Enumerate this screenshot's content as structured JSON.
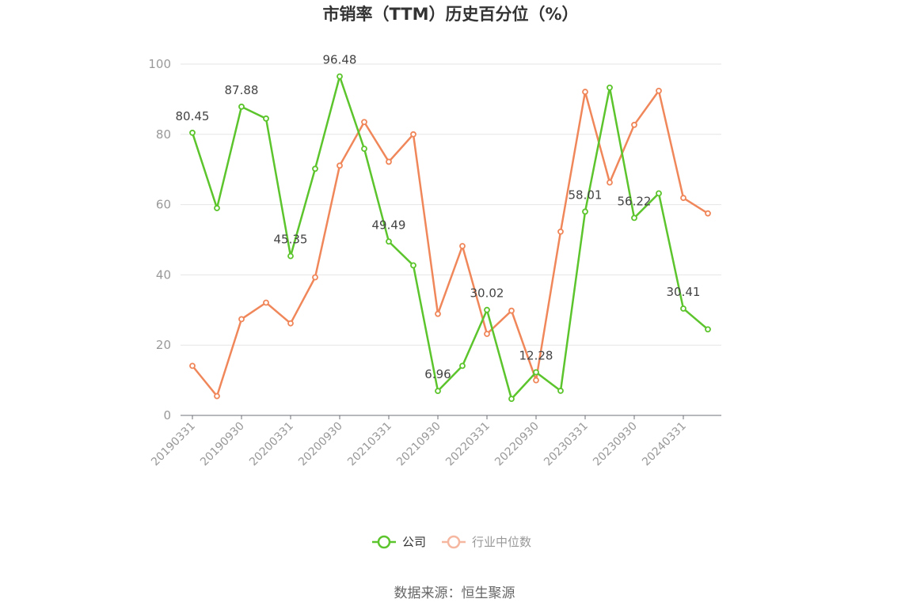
{
  "chart_data": {
    "type": "line",
    "title": "市销率（TTM）历史百分位（%）",
    "source": "数据来源：恒生聚源",
    "ylim": [
      0,
      100
    ],
    "yticks": [
      0,
      20,
      40,
      60,
      80,
      100
    ],
    "grid": true,
    "legend_position": "bottom",
    "x": [
      "20190331",
      "20190630",
      "20190930",
      "20191231",
      "20200331",
      "20200630",
      "20200930",
      "20201231",
      "20210331",
      "20210630",
      "20210930",
      "20211231",
      "20220331",
      "20220630",
      "20220930",
      "20221231",
      "20230331",
      "20230630",
      "20230930",
      "20231231",
      "20240331",
      "20240630"
    ],
    "xtick_labels": [
      "20190331",
      "20190930",
      "20200331",
      "20200930",
      "20210331",
      "20210930",
      "20220331",
      "20220930",
      "20230331",
      "20230930",
      "20240331"
    ],
    "series": [
      {
        "name": "公司",
        "color": "#5cc42c",
        "values": [
          80.45,
          59.0,
          87.88,
          84.5,
          45.35,
          70.2,
          96.48,
          75.9,
          49.49,
          42.7,
          6.96,
          14.1,
          30.02,
          4.7,
          12.28,
          7.0,
          58.01,
          93.3,
          56.22,
          63.2,
          30.41,
          24.5
        ],
        "labels": {
          "0": "80.45",
          "2": "87.88",
          "4": "45.35",
          "6": "96.48",
          "8": "49.49",
          "10": "6.96",
          "12": "30.02",
          "14": "12.28",
          "16": "58.01",
          "18": "56.22",
          "20": "30.41"
        }
      },
      {
        "name": "行业中位数",
        "color": "#f0875a",
        "values": [
          14.1,
          5.5,
          27.4,
          32.1,
          26.2,
          39.3,
          71.1,
          83.5,
          72.2,
          80.0,
          28.9,
          48.2,
          23.2,
          29.8,
          10.0,
          52.3,
          92.1,
          66.3,
          82.7,
          92.4,
          61.9,
          57.5
        ]
      }
    ]
  }
}
